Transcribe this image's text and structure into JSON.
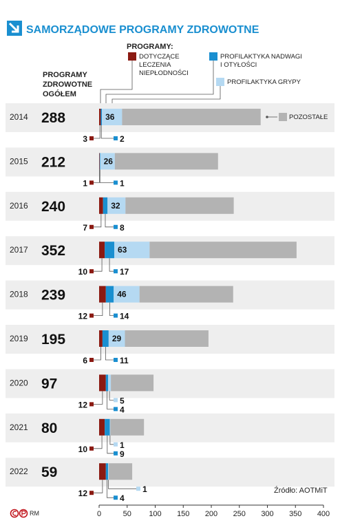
{
  "title": "SAMORZĄDOWE PROGRAMY ZDROWOTNE",
  "header": {
    "programs_label": "PROGRAMY:",
    "total_label": [
      "PROGRAMY",
      "ZDROWOTNE",
      "OGÓŁEM"
    ]
  },
  "legend": {
    "infertility": [
      "DOTYCZĄCE",
      "LECZENIA",
      "NIEPŁODNOŚCI"
    ],
    "obesity": [
      "PROFILAKTYKA NADWAGI",
      "I OTYŁOŚCI"
    ],
    "flu": "PROFILAKTYKA GRYPY",
    "other": "POZOSTAŁE"
  },
  "colors": {
    "title": "#1a8fd0",
    "infertility": "#8b1a12",
    "obesity": "#1a8fd0",
    "flu": "#b5d9f2",
    "other": "#b3b3b3",
    "row_band": "#eeeeee"
  },
  "source": "Źródło: AOTMiT",
  "footer_logo": "RM",
  "chart_data": {
    "type": "bar",
    "orientation": "horizontal",
    "stacked": true,
    "categories": [
      "2014",
      "2015",
      "2016",
      "2017",
      "2018",
      "2019",
      "2020",
      "2021",
      "2022"
    ],
    "totals": [
      288,
      212,
      240,
      352,
      239,
      195,
      97,
      80,
      59
    ],
    "series": [
      {
        "name": "DOTYCZĄCE LECZENIA NIEPŁODNOŚCI",
        "values": [
          3,
          1,
          7,
          10,
          12,
          6,
          12,
          10,
          12
        ]
      },
      {
        "name": "PROFILAKTYKA NADWAGI I OTYŁOŚCI",
        "values": [
          2,
          1,
          8,
          17,
          14,
          11,
          4,
          9,
          4
        ]
      },
      {
        "name": "PROFILAKTYKA GRYPY",
        "values": [
          36,
          26,
          32,
          63,
          46,
          29,
          5,
          1,
          1
        ]
      },
      {
        "name": "POZOSTAŁE",
        "values": [
          247,
          184,
          193,
          262,
          167,
          149,
          76,
          60,
          42
        ]
      }
    ],
    "xlim": [
      0,
      400
    ],
    "xticks": [
      0,
      50,
      100,
      150,
      200,
      250,
      300,
      350,
      400
    ],
    "grid": false,
    "legend_position": "top"
  }
}
